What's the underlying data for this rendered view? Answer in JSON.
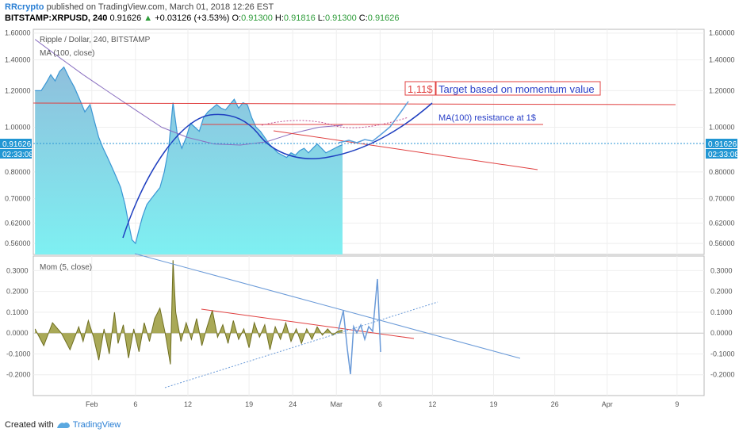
{
  "header": {
    "author": "RRcrypto",
    "published": "published on TradingView.com, March 01, 2018 12:26 EST",
    "symbol": "BITSTAMP:XRPUSD, 240",
    "last": "0.91626",
    "change": "+0.03126 (+3.53%)",
    "o_label": "O:",
    "o": "0.91300",
    "h_label": "H:",
    "h": "0.91816",
    "l_label": "L:",
    "l": "0.91300",
    "c_label": "C:",
    "c": "0.91626"
  },
  "price_pane": {
    "title": "Ripple / Dollar, 240, BITSTAMP",
    "ma_label": "MA (100, close)",
    "last_price_tag": "0.91626",
    "countdown_tag": "02:33:08",
    "target_value_box": "1,11$",
    "target_text_box": "Target based on momentum value",
    "resistance_text": "MA(100) resistance at 1$"
  },
  "mom_pane": {
    "title": "Mom (5, close)"
  },
  "footer": {
    "created_with": "Created with",
    "brand": "TradingView"
  },
  "colors": {
    "area_fill_top": "#8ac4e0",
    "area_fill_bottom": "#7eeef0",
    "price_line": "#3a96d4",
    "ma_line": "#8a6fc0",
    "arc_line": "#1f3fc0",
    "red_line": "#e04040",
    "mom_fill": "#9a9a3a",
    "mom_line": "#6e6e20",
    "trend_blue": "#6a9ad8",
    "tag_bg": "#2196d3"
  },
  "chart_data": [
    {
      "type": "area",
      "pane": "price",
      "title": "Ripple / Dollar, 240, BITSTAMP",
      "y_scale": "log",
      "ylim": [
        0.53,
        1.63
      ],
      "y_ticks": [
        "1.60000",
        "1.40000",
        "1.20000",
        "1.00000",
        "0.80000",
        "0.70000",
        "0.62000",
        "0.56000"
      ],
      "y_tick_values": [
        1.6,
        1.4,
        1.2,
        1.0,
        0.8,
        0.7,
        0.62,
        0.56
      ],
      "x_ticks": [
        "Feb",
        "6",
        "12",
        "19",
        "24",
        "Mar",
        "6",
        "12",
        "19",
        "26",
        "Apr",
        "9"
      ],
      "x_tick_days": [
        32,
        37,
        43,
        50,
        55,
        60,
        65,
        71,
        78,
        85,
        91,
        99
      ],
      "xlim_days": [
        25.3,
        102.1
      ],
      "series": [
        {
          "name": "Ripple / Dollar",
          "x_days": [
            25.5,
            26.2,
            26.8,
            27.3,
            27.8,
            28.3,
            28.8,
            29.4,
            30.0,
            30.6,
            31.2,
            31.8,
            32.3,
            32.8,
            33.3,
            33.8,
            34.3,
            34.8,
            35.3,
            35.8,
            36.2,
            36.6,
            37.0,
            37.4,
            37.8,
            38.3,
            38.8,
            39.3,
            39.8,
            40.3,
            40.8,
            41.3,
            41.8,
            42.3,
            42.8,
            43.3,
            43.8,
            44.3,
            44.8,
            45.3,
            45.8,
            46.3,
            46.8,
            47.3,
            47.8,
            48.3,
            48.8,
            49.3,
            49.8,
            50.3,
            50.8,
            51.3,
            51.8,
            52.3,
            52.8,
            53.3,
            53.8,
            54.3,
            54.8,
            55.3,
            55.8,
            56.3,
            56.8,
            57.3,
            57.8,
            58.3,
            58.8,
            59.3,
            59.8,
            60.3,
            60.7
          ],
          "y": [
            1.2,
            1.2,
            1.25,
            1.3,
            1.26,
            1.32,
            1.35,
            1.28,
            1.22,
            1.15,
            1.08,
            1.12,
            1.03,
            0.95,
            0.9,
            0.86,
            0.82,
            0.78,
            0.74,
            0.68,
            0.62,
            0.57,
            0.56,
            0.6,
            0.64,
            0.68,
            0.7,
            0.72,
            0.74,
            0.8,
            0.9,
            1.13,
            0.96,
            0.9,
            0.95,
            1.02,
            1.0,
            0.98,
            1.05,
            1.08,
            1.1,
            1.12,
            1.1,
            1.09,
            1.12,
            1.15,
            1.1,
            1.13,
            1.12,
            1.05,
            1.0,
            0.98,
            0.95,
            0.92,
            0.9,
            0.88,
            0.87,
            0.86,
            0.88,
            0.87,
            0.89,
            0.9,
            0.88,
            0.9,
            0.92,
            0.9,
            0.88,
            0.89,
            0.9,
            0.91,
            0.91626
          ]
        },
        {
          "name": "MA (100, close)",
          "x_days": [
            25.5,
            28.0,
            31.0,
            34.0,
            37.0,
            40.0,
            43.0,
            46.0,
            49.0,
            52.0,
            55.0,
            58.0,
            60.7
          ],
          "y": [
            1.55,
            1.43,
            1.3,
            1.19,
            1.09,
            1.0,
            0.95,
            0.92,
            0.915,
            0.93,
            0.97,
            1.0,
            1.01
          ]
        }
      ]
    },
    {
      "type": "area",
      "pane": "momentum",
      "title": "Mom (5, close)",
      "ylim": [
        -0.3,
        0.37
      ],
      "y_ticks": [
        "0.3000",
        "0.2000",
        "0.1000",
        "0.0000",
        "-0.1000",
        "-0.2000"
      ],
      "y_tick_values": [
        0.3,
        0.2,
        0.1,
        0.0,
        -0.1,
        -0.2
      ],
      "series": [
        {
          "name": "Mom (5, close)",
          "x_days": [
            25.5,
            26.5,
            27.5,
            28.5,
            29.5,
            30.5,
            31.0,
            31.6,
            32.2,
            32.8,
            33.4,
            34.0,
            34.6,
            35.0,
            35.6,
            36.2,
            36.8,
            37.4,
            38.0,
            38.6,
            39.2,
            39.8,
            40.4,
            41.0,
            41.3,
            41.6,
            42.2,
            42.8,
            43.4,
            44.0,
            44.6,
            45.2,
            45.8,
            46.4,
            47.0,
            47.6,
            48.2,
            48.8,
            49.4,
            50.0,
            50.6,
            51.2,
            51.8,
            52.4,
            53.0,
            53.6,
            54.2,
            54.8,
            55.4,
            56.0,
            56.6,
            57.2,
            57.8,
            58.4,
            59.0,
            59.6,
            60.2,
            60.7
          ],
          "y": [
            0.02,
            -0.06,
            0.05,
            0.0,
            -0.08,
            0.03,
            -0.04,
            0.06,
            -0.02,
            -0.13,
            0.02,
            -0.1,
            0.1,
            -0.05,
            0.04,
            -0.12,
            0.02,
            -0.09,
            0.05,
            -0.04,
            0.07,
            0.12,
            0.0,
            -0.15,
            0.35,
            0.1,
            -0.04,
            0.05,
            -0.03,
            0.07,
            -0.06,
            0.03,
            0.11,
            -0.02,
            0.04,
            -0.05,
            0.06,
            -0.03,
            0.02,
            -0.07,
            0.05,
            -0.02,
            0.04,
            -0.08,
            0.03,
            -0.03,
            0.05,
            -0.04,
            0.02,
            -0.05,
            0.02,
            -0.03,
            0.03,
            -0.01,
            0.02,
            -0.01,
            0.01,
            0.015
          ]
        }
      ]
    }
  ]
}
